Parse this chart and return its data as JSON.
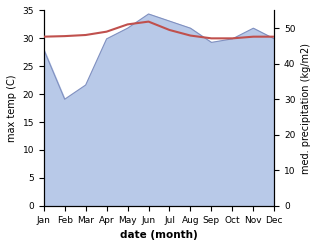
{
  "months": [
    1,
    2,
    3,
    4,
    5,
    6,
    7,
    8,
    9,
    10,
    11,
    12
  ],
  "month_labels": [
    "Jan",
    "Feb",
    "Mar",
    "Apr",
    "May",
    "Jun",
    "Jul",
    "Aug",
    "Sep",
    "Oct",
    "Nov",
    "Dec"
  ],
  "temp": [
    30.3,
    30.4,
    30.6,
    31.2,
    32.5,
    33.0,
    31.5,
    30.5,
    30.0,
    30.0,
    30.3,
    30.3
  ],
  "precip": [
    44,
    30,
    34,
    47,
    50,
    54,
    52,
    50,
    46,
    47,
    50,
    47
  ],
  "temp_color": "#c0504d",
  "precip_color": "#b8c9e8",
  "precip_edge_color": "#8090c0",
  "ylabel_left": "max temp (C)",
  "ylabel_right": "med. precipitation (kg/m2)",
  "xlabel": "date (month)",
  "ylim_left": [
    0,
    35
  ],
  "ylim_right": [
    0,
    55
  ],
  "yticks_left": [
    0,
    5,
    10,
    15,
    20,
    25,
    30,
    35
  ],
  "yticks_right": [
    0,
    10,
    20,
    30,
    40,
    50
  ],
  "title": ""
}
